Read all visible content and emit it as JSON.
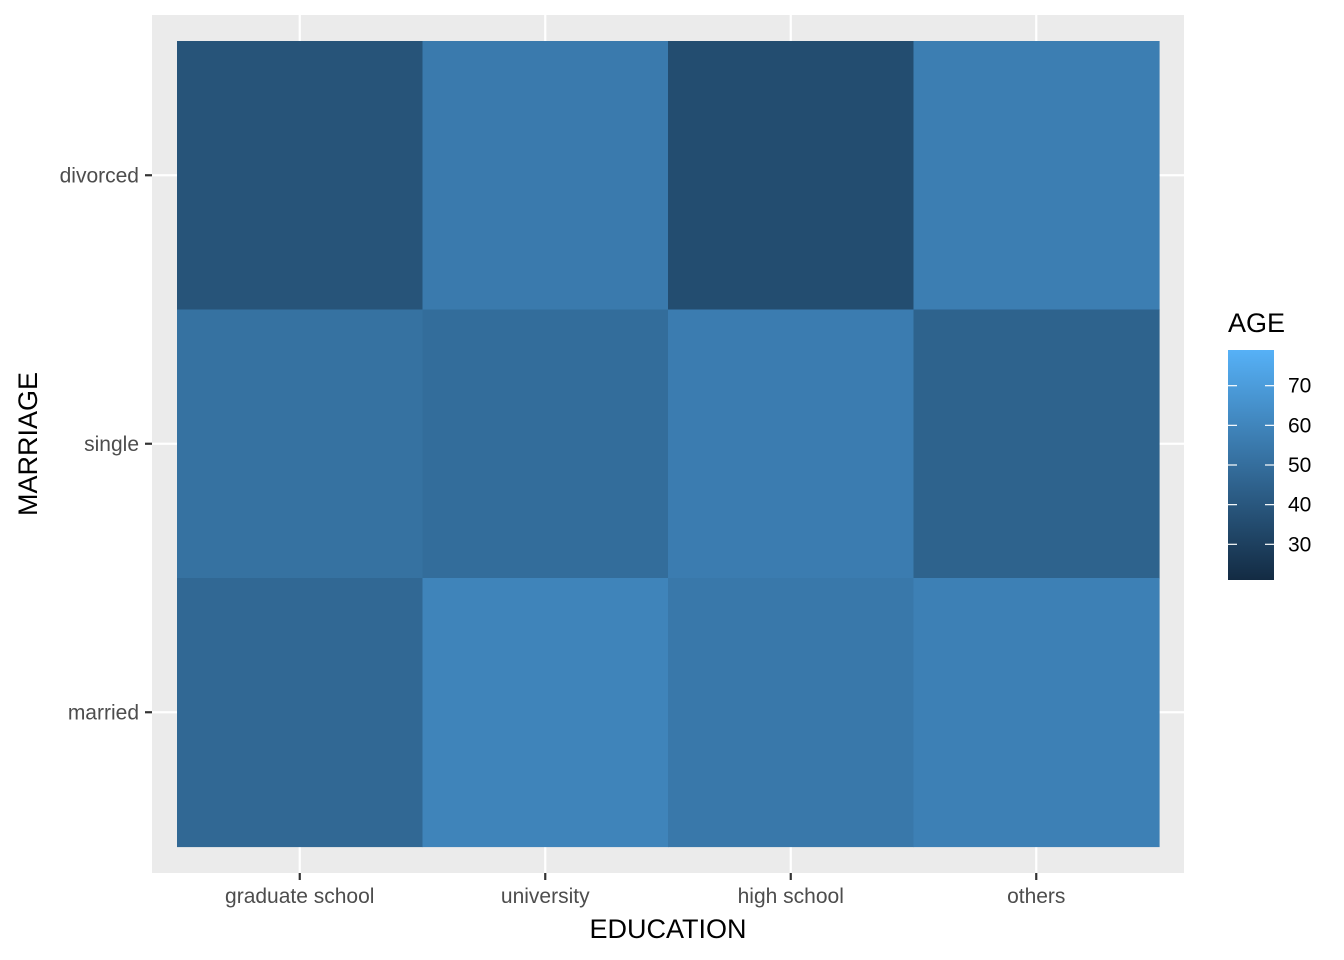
{
  "chart_data": {
    "type": "heatmap",
    "title": "",
    "xlabel": "EDUCATION",
    "ylabel": "MARRIAGE",
    "x_categories": [
      "graduate school",
      "university",
      "high school",
      "others"
    ],
    "y_categories": [
      "divorced",
      "single",
      "married"
    ],
    "values": [
      [
        30,
        45,
        28,
        47
      ],
      [
        41,
        39,
        46,
        35
      ],
      [
        37,
        50,
        44,
        48
      ]
    ],
    "legend": {
      "title": "AGE",
      "min": 21,
      "max": 79,
      "ticks": [
        30,
        40,
        50,
        60,
        70
      ],
      "low_color": "#132B43",
      "high_color": "#56B1F7",
      "position": "right"
    },
    "grid": true
  }
}
